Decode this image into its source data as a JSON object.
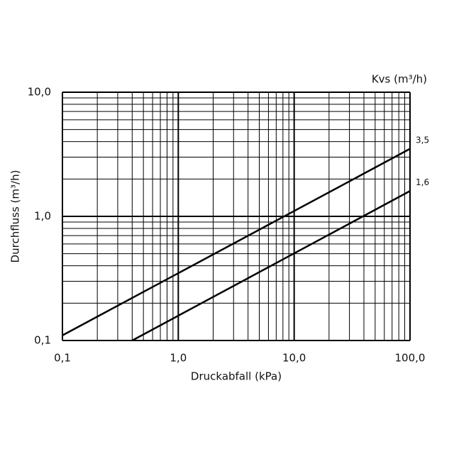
{
  "chart_data": {
    "type": "line",
    "xscale": "log",
    "yscale": "log",
    "xlabel": "Druckabfall (kPa)",
    "ylabel": "Durchfluss (m³/h)",
    "legend_title": "Kvs (m³/h)",
    "xlim": [
      0.1,
      100
    ],
    "ylim": [
      0.1,
      10
    ],
    "xticks": [
      {
        "value": 0.1,
        "label": "0,1"
      },
      {
        "value": 1,
        "label": "1,0"
      },
      {
        "value": 10,
        "label": "10,0"
      },
      {
        "value": 100,
        "label": "100,0"
      }
    ],
    "yticks": [
      {
        "value": 0.1,
        "label": "0,1"
      },
      {
        "value": 1,
        "label": "1,0"
      },
      {
        "value": 10,
        "label": "10,0"
      }
    ],
    "xgrid_minor": [
      0.2,
      0.3,
      0.4,
      0.5,
      0.6,
      0.7,
      0.8,
      0.9,
      2,
      3,
      4,
      5,
      6,
      7,
      8,
      9,
      20,
      30,
      40,
      50,
      60,
      70,
      80,
      90
    ],
    "ygrid_minor": [
      0.2,
      0.3,
      0.4,
      0.5,
      0.6,
      0.7,
      0.8,
      0.9,
      2,
      3,
      4,
      5,
      6,
      7,
      8,
      9
    ],
    "grid": true,
    "series": [
      {
        "name": "3,5",
        "color": "#000000",
        "x": [
          0.1,
          100
        ],
        "values": [
          0.11,
          3.5
        ]
      },
      {
        "name": "1,6",
        "color": "#000000",
        "x": [
          0.4,
          100
        ],
        "values": [
          0.1,
          1.6
        ]
      }
    ]
  }
}
